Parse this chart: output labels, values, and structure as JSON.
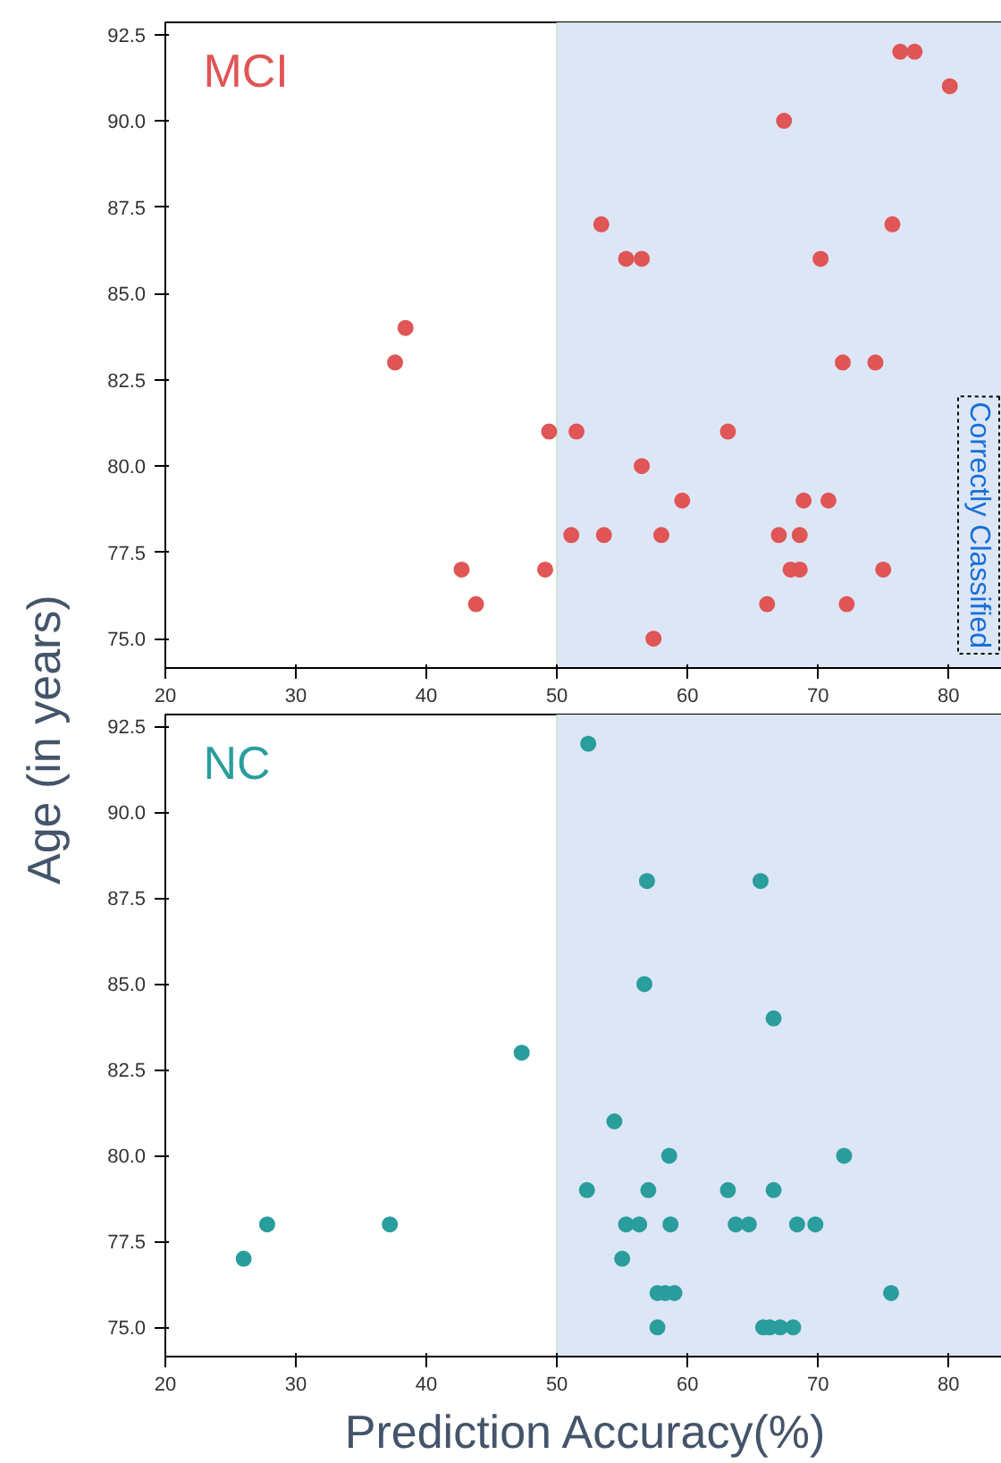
{
  "chart_data": [
    {
      "type": "scatter",
      "ylabel": "Age (in years)",
      "annotations": [
        "Correctly Classified"
      ],
      "xlim": [
        20,
        84.5
      ],
      "ylim": [
        74.15,
        92.85
      ],
      "xticks": [
        20,
        30,
        40,
        50,
        60,
        70,
        80
      ],
      "yticks": [
        {
          "value": 75,
          "label": "75.0"
        },
        77.5,
        {
          "value": 80,
          "label": "80.0"
        },
        82.5,
        {
          "value": 85,
          "label": "85.0"
        },
        87.5,
        {
          "value": 90,
          "label": "90.0"
        },
        92.5
      ],
      "grid": false,
      "legend": false,
      "marker": "circle",
      "bands": [
        {
          "axis": "x",
          "from": 50,
          "to": 84.5,
          "color": "#dce6f6"
        }
      ],
      "series": [
        {
          "name": "MCI",
          "color": "#e05555",
          "x": [
            37.6,
            38.4,
            42.7,
            43.8,
            49.1,
            49.4,
            51.5,
            51.1,
            53.6,
            53.4,
            55.3,
            56.5,
            67.4,
            76.3,
            77.4,
            80.1,
            75.7,
            70.2,
            71.9,
            74.4,
            63.1,
            56.5,
            59.6,
            68.9,
            70.8,
            58.0,
            67.0,
            68.6,
            67.9,
            68.6,
            75.0,
            66.1,
            72.2,
            57.4
          ],
          "values": [
            83,
            84,
            77,
            76,
            77,
            81,
            81,
            78,
            78,
            87,
            86,
            86,
            90,
            92,
            92,
            91,
            87,
            86,
            83,
            83,
            81,
            80,
            79,
            79,
            79,
            78,
            78,
            78,
            77,
            77,
            77,
            76,
            76,
            75
          ]
        }
      ]
    },
    {
      "type": "scatter",
      "xlabel": "Prediction Accuracy(%)",
      "xlim": [
        20,
        84.5
      ],
      "ylim": [
        74.15,
        92.85
      ],
      "xticks": [
        20,
        30,
        40,
        50,
        60,
        70,
        80
      ],
      "yticks": [
        {
          "value": 75,
          "label": "75.0"
        },
        77.5,
        {
          "value": 80,
          "label": "80.0"
        },
        82.5,
        {
          "value": 85,
          "label": "85.0"
        },
        87.5,
        {
          "value": 90,
          "label": "90.0"
        },
        92.5
      ],
      "grid": false,
      "legend": false,
      "marker": "circle",
      "bands": [
        {
          "axis": "x",
          "from": 50,
          "to": 84.5,
          "color": "#dce6f6"
        }
      ],
      "series": [
        {
          "name": "NC",
          "color": "#2a9d9d",
          "x": [
            26.0,
            27.8,
            37.2,
            47.3,
            52.4,
            52.3,
            54.4,
            55.0,
            55.3,
            56.3,
            56.7,
            56.9,
            57.0,
            57.7,
            58.3,
            59.0,
            57.7,
            58.6,
            58.7,
            63.1,
            63.7,
            64.7,
            65.6,
            66.6,
            66.6,
            68.4,
            69.8,
            72.0,
            75.6,
            65.8,
            66.3,
            67.1,
            68.1
          ],
          "values": [
            77,
            78,
            78,
            83,
            92,
            79,
            81,
            77,
            78,
            78,
            85,
            88,
            79,
            76,
            76,
            76,
            75,
            80,
            78,
            79,
            78,
            78,
            88,
            84,
            79,
            78,
            78,
            80,
            76,
            75,
            75,
            75,
            75
          ]
        }
      ]
    }
  ]
}
